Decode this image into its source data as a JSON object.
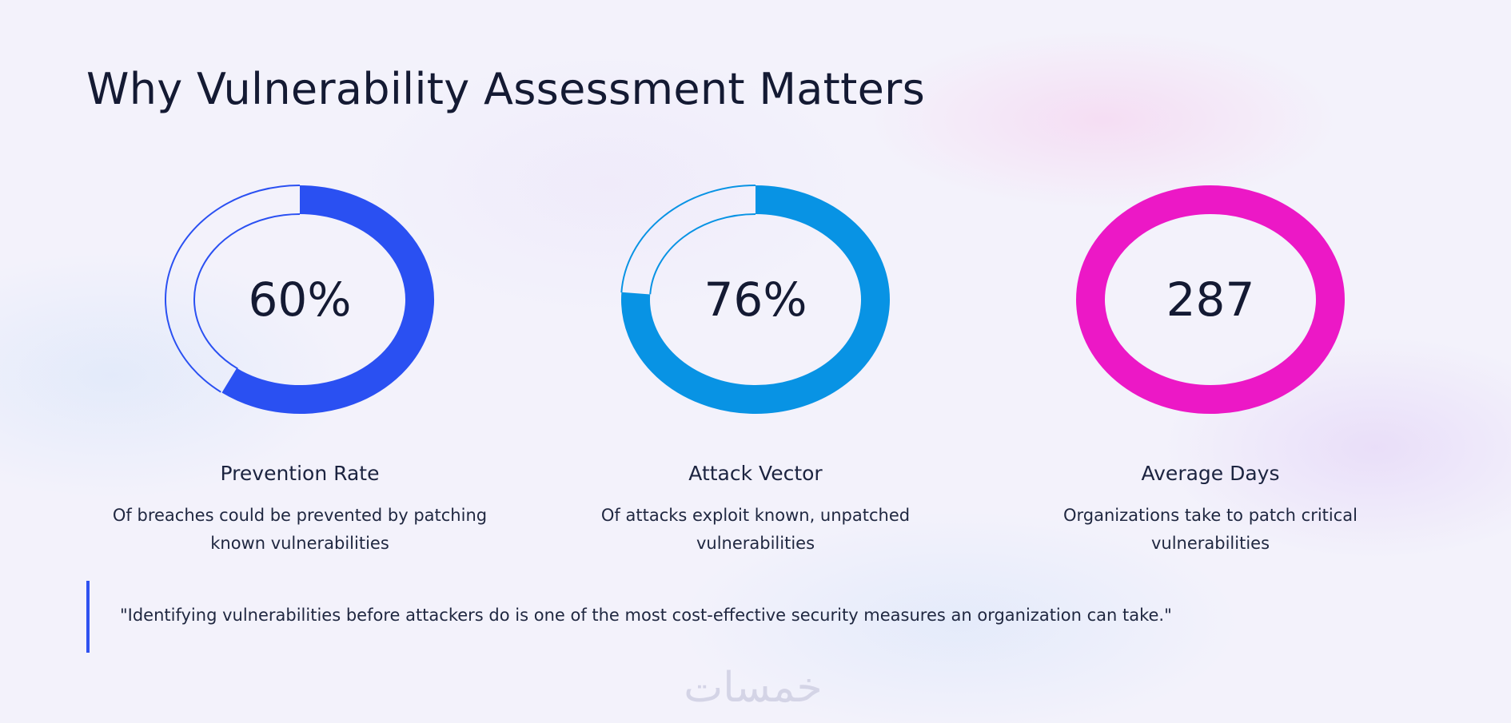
{
  "title": "Why Vulnerability Assessment Matters",
  "stats": [
    {
      "value": "60%",
      "label": "Prevention Rate",
      "description": "Of breaches could be prevented by patching known vulnerabilities",
      "ring_color": "#2a50f2",
      "progress": 0.6
    },
    {
      "value": "76%",
      "label": "Attack Vector",
      "description": "Of attacks exploit known, unpatched vulnerabilities",
      "ring_color": "#0893e4",
      "progress": 0.76
    },
    {
      "value": "287",
      "label": "Average Days",
      "description": "Organizations take to patch critical vulnerabilities",
      "ring_color": "#ec18c6",
      "progress": 1.0
    }
  ],
  "quote": "\"Identifying vulnerabilities before attackers do is one of the most cost-effective security measures an organization can take.\"",
  "watermark": {
    "text": "خمسات",
    "color": "#d4d4e6"
  }
}
